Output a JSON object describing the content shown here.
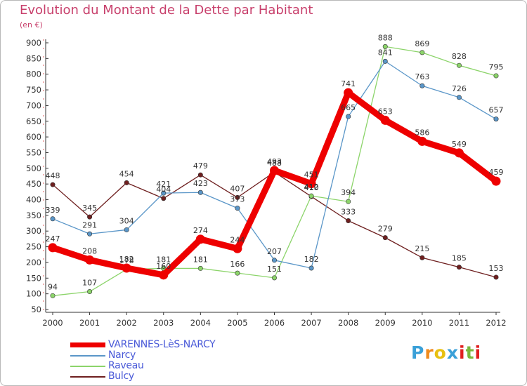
{
  "title": "Evolution du Montant de la Dette par Habitant",
  "subtitle": "(en €)",
  "logo": {
    "text": "Proxiti",
    "colors": [
      "#3aa0d8",
      "#f08a1c",
      "#e8c010",
      "#3aa0d8",
      "#e02020",
      "#7ab83c",
      "#e02020"
    ]
  },
  "chart_data": {
    "type": "line",
    "x": [
      "2000",
      "2001",
      "2002",
      "2003",
      "2004",
      "2005",
      "2006",
      "2007",
      "2008",
      "2009",
      "2010",
      "2011",
      "2012"
    ],
    "ylim": [
      50,
      900
    ],
    "yticks": [
      50,
      100,
      150,
      200,
      250,
      300,
      350,
      400,
      450,
      500,
      550,
      600,
      650,
      700,
      750,
      800,
      850,
      900
    ],
    "grid": false,
    "legend_position": "bottom-left",
    "series": [
      {
        "name": "Bulcy",
        "color": "#6e1f1f",
        "values": [
          448,
          345,
          454,
          404,
          479,
          407,
          488,
          410,
          333,
          279,
          215,
          185,
          153
        ],
        "labels": [
          "448",
          "345",
          "454",
          "404",
          "479",
          "407",
          "488",
          "410",
          "333",
          "279",
          "215",
          "185",
          "153"
        ]
      },
      {
        "name": "Raveau",
        "color": "#8cd46a",
        "values": [
          94,
          107,
          178,
          181,
          181,
          166,
          151,
          412,
          394,
          888,
          869,
          828,
          795
        ],
        "labels": [
          "94",
          "107",
          "178",
          "181",
          "181",
          "166",
          "151",
          "412",
          "394",
          "888",
          "869",
          "828",
          "795"
        ]
      },
      {
        "name": "Narcy",
        "color": "#5a96c8",
        "values": [
          339,
          291,
          304,
          421,
          423,
          373,
          207,
          182,
          665,
          841,
          763,
          726,
          657
        ],
        "labels": [
          "339",
          "291",
          "304",
          "421",
          "423",
          "373",
          "207",
          "182",
          "665",
          "841",
          "763",
          "726",
          "657"
        ]
      },
      {
        "name": "VARENNES-LèS-NARCY",
        "color": "#ee0000",
        "values": [
          247,
          208,
          182,
          160,
          274,
          244,
          493,
          451,
          741,
          653,
          586,
          549,
          459
        ],
        "labels": [
          "247",
          "208",
          "182",
          "160",
          "274",
          "244",
          "493",
          "451",
          "741",
          "653",
          "586",
          "549",
          "459"
        ]
      }
    ]
  }
}
